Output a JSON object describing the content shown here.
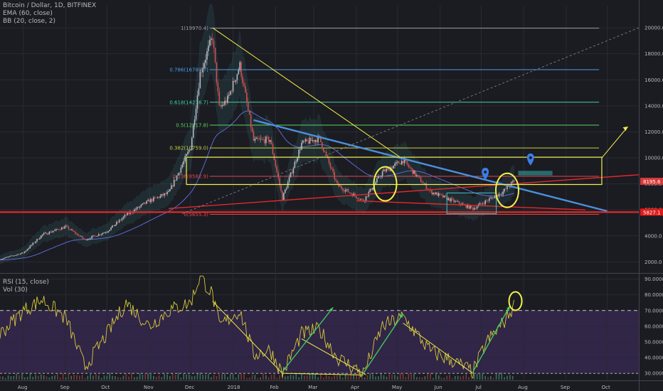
{
  "header": {
    "symbol_line": "Bitcoin / Dollar, 1D, BITFINEX",
    "ema_line": "EMA (60, close)",
    "bb_line": "BB (20, close, 2)",
    "rsi_line": "RSI (15, close)",
    "vol_line": "Vol (30)"
  },
  "colors": {
    "background": "#1b1b22",
    "candle_up": "#b8b8c0",
    "candle_down": "#d05050",
    "rsi_line": "#d6c93a",
    "rsi_fill": "#3a2a55",
    "resistance_line": "#4a90d9",
    "support_red": "#e02a2a",
    "highlight_yellow": "#f2f04a",
    "arrow_green": "#3fd45a",
    "bb_band": "#2f6b6b",
    "price_badge": "#d43a3a"
  },
  "chart_data": [
    {
      "type": "candlestick",
      "title": "Bitcoin / Dollar, 1D, BITFINEX",
      "x_tick_labels": [
        "Aug",
        "Sep",
        "Oct",
        "Nov",
        "Dec",
        "2018",
        "Feb",
        "Mar",
        "Apr",
        "May",
        "Jun",
        "Jul",
        "Aug",
        "Sep",
        "Oct"
      ],
      "y_tick_labels": [
        "2000.0",
        "4000.0",
        "6000.0",
        "8000.0",
        "10000.0",
        "12000.0",
        "14000.0",
        "16000.0",
        "18000.0",
        "20000.0"
      ],
      "ylim": [
        1200,
        21700
      ],
      "close_series": [
        {
          "date": "2017-07-15",
          "value": 2200
        },
        {
          "date": "2017-08-01",
          "value": 2700
        },
        {
          "date": "2017-08-15",
          "value": 4100
        },
        {
          "date": "2017-09-01",
          "value": 4700
        },
        {
          "date": "2017-09-15",
          "value": 3700
        },
        {
          "date": "2017-10-01",
          "value": 4350
        },
        {
          "date": "2017-10-15",
          "value": 5600
        },
        {
          "date": "2017-11-01",
          "value": 6700
        },
        {
          "date": "2017-11-15",
          "value": 7300
        },
        {
          "date": "2017-12-01",
          "value": 10800
        },
        {
          "date": "2017-12-08",
          "value": 16500
        },
        {
          "date": "2017-12-17",
          "value": 19300
        },
        {
          "date": "2017-12-22",
          "value": 13800
        },
        {
          "date": "2017-12-28",
          "value": 14500
        },
        {
          "date": "2018-01-06",
          "value": 17100
        },
        {
          "date": "2018-01-16",
          "value": 11300
        },
        {
          "date": "2018-01-28",
          "value": 11400
        },
        {
          "date": "2018-02-06",
          "value": 6900
        },
        {
          "date": "2018-02-20",
          "value": 11100
        },
        {
          "date": "2018-03-05",
          "value": 11500
        },
        {
          "date": "2018-03-18",
          "value": 7900
        },
        {
          "date": "2018-04-06",
          "value": 6700
        },
        {
          "date": "2018-04-20",
          "value": 8900
        },
        {
          "date": "2018-05-05",
          "value": 9800
        },
        {
          "date": "2018-05-25",
          "value": 7400
        },
        {
          "date": "2018-06-10",
          "value": 6700
        },
        {
          "date": "2018-06-25",
          "value": 6100
        },
        {
          "date": "2018-07-05",
          "value": 6700
        },
        {
          "date": "2018-07-17",
          "value": 7400
        },
        {
          "date": "2018-07-25",
          "value": 8200
        }
      ],
      "annotations": [
        {
          "label": "1(19970.4)",
          "value": 19970.4,
          "color": "#9a9aa6"
        },
        {
          "label": "0.786(16780.7)",
          "value": 16780.7,
          "color": "#4aa0e0"
        },
        {
          "label": "0.618(14276.7)",
          "value": 14276.7,
          "color": "#3fd4a0"
        },
        {
          "label": "0.5(12517.8)",
          "value": 12517.8,
          "color": "#5ad45a"
        },
        {
          "label": "0.382(10759.0)",
          "value": 10759.0,
          "color": "#c4d43a"
        },
        {
          "label": "0.236(8582.9)",
          "value": 8582.9,
          "color": "#e04a4a"
        },
        {
          "label": "0(5655.3)",
          "value": 5655.3,
          "color": "#e04a4a"
        }
      ],
      "price_badges": [
        {
          "label": "8195.6",
          "value": 8195.6,
          "color": "#d43a3a"
        },
        {
          "label": "5827.1",
          "value": 5827.1,
          "color": "#e01a1a"
        }
      ]
    },
    {
      "type": "line",
      "title": "RSI (15, close)",
      "y_tick_labels": [
        "30.0000",
        "40.0000",
        "50.0000",
        "60.0000",
        "70.0000",
        "80.0000",
        "90.0000"
      ],
      "ylim": [
        26,
        93
      ],
      "reference_line": 70,
      "series": [
        {
          "date": "2017-07-15",
          "value": 55
        },
        {
          "date": "2017-08-01",
          "value": 70
        },
        {
          "date": "2017-08-15",
          "value": 77
        },
        {
          "date": "2017-09-01",
          "value": 65
        },
        {
          "date": "2017-09-15",
          "value": 34
        },
        {
          "date": "2017-10-01",
          "value": 55
        },
        {
          "date": "2017-10-15",
          "value": 75
        },
        {
          "date": "2017-11-01",
          "value": 60
        },
        {
          "date": "2017-11-15",
          "value": 70
        },
        {
          "date": "2017-12-01",
          "value": 75
        },
        {
          "date": "2017-12-08",
          "value": 92
        },
        {
          "date": "2017-12-17",
          "value": 80
        },
        {
          "date": "2017-12-22",
          "value": 60
        },
        {
          "date": "2018-01-06",
          "value": 70
        },
        {
          "date": "2018-01-16",
          "value": 42
        },
        {
          "date": "2018-01-28",
          "value": 45
        },
        {
          "date": "2018-02-06",
          "value": 30
        },
        {
          "date": "2018-02-20",
          "value": 55
        },
        {
          "date": "2018-03-05",
          "value": 58
        },
        {
          "date": "2018-03-18",
          "value": 40
        },
        {
          "date": "2018-04-06",
          "value": 30
        },
        {
          "date": "2018-04-20",
          "value": 60
        },
        {
          "date": "2018-05-05",
          "value": 66
        },
        {
          "date": "2018-05-25",
          "value": 44
        },
        {
          "date": "2018-06-10",
          "value": 38
        },
        {
          "date": "2018-06-25",
          "value": 31
        },
        {
          "date": "2018-07-05",
          "value": 50
        },
        {
          "date": "2018-07-17",
          "value": 62
        },
        {
          "date": "2018-07-25",
          "value": 73
        }
      ]
    }
  ]
}
